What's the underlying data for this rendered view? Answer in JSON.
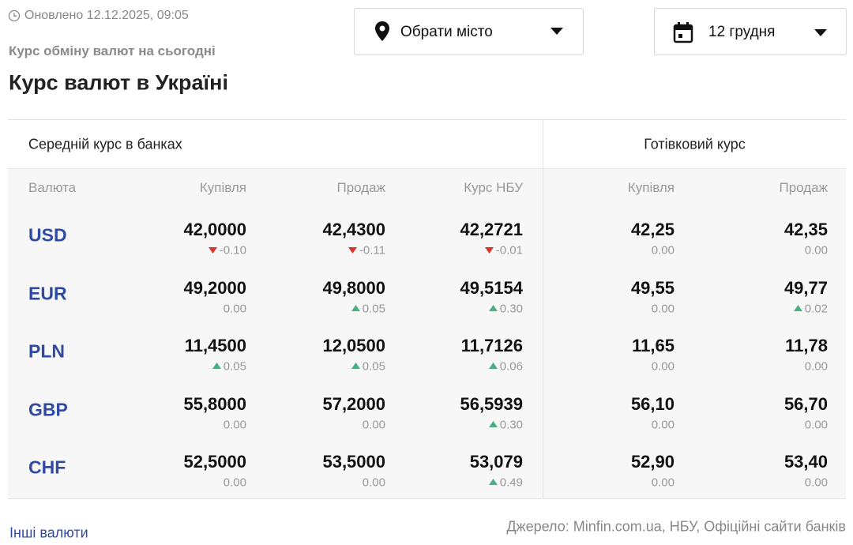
{
  "header": {
    "updated": "Оновлено 12.12.2025, 09:05",
    "subtitle": "Курс обміну валют на сьогодні",
    "title": "Курс валют в Україні"
  },
  "controls": {
    "city": "Обрати місто",
    "date": "12 грудня"
  },
  "table": {
    "groups": [
      "Середній курс в банках",
      "Готівковий курс"
    ],
    "columns": [
      "Валюта",
      "Купівля",
      "Продаж",
      "Курс НБУ",
      "Купівля",
      "Продаж"
    ],
    "rows": [
      {
        "currency": "USD",
        "cells": [
          {
            "rate": "42,0000",
            "change": "-0.10"
          },
          {
            "rate": "42,4300",
            "change": "-0.11"
          },
          {
            "rate": "42,2721",
            "change": "-0.01"
          },
          {
            "rate": "42,25",
            "change": "0.00"
          },
          {
            "rate": "42,35",
            "change": "0.00"
          }
        ]
      },
      {
        "currency": "EUR",
        "cells": [
          {
            "rate": "49,2000",
            "change": "0.00"
          },
          {
            "rate": "49,8000",
            "change": "0.05"
          },
          {
            "rate": "49,5154",
            "change": "0.30"
          },
          {
            "rate": "49,55",
            "change": "0.00"
          },
          {
            "rate": "49,77",
            "change": "0.02"
          }
        ]
      },
      {
        "currency": "PLN",
        "cells": [
          {
            "rate": "11,4500",
            "change": "0.05"
          },
          {
            "rate": "12,0500",
            "change": "0.05"
          },
          {
            "rate": "11,7126",
            "change": "0.06"
          },
          {
            "rate": "11,65",
            "change": "0.00"
          },
          {
            "rate": "11,78",
            "change": "0.00"
          }
        ]
      },
      {
        "currency": "GBP",
        "cells": [
          {
            "rate": "55,8000",
            "change": "0.00"
          },
          {
            "rate": "57,2000",
            "change": "0.00"
          },
          {
            "rate": "56,5939",
            "change": "0.30"
          },
          {
            "rate": "56,10",
            "change": "0.00"
          },
          {
            "rate": "56,70",
            "change": "0.00"
          }
        ]
      },
      {
        "currency": "CHF",
        "cells": [
          {
            "rate": "52,5000",
            "change": "0.00"
          },
          {
            "rate": "53,5000",
            "change": "0.00"
          },
          {
            "rate": "53,079",
            "change": "0.49"
          },
          {
            "rate": "52,90",
            "change": "0.00"
          },
          {
            "rate": "53,40",
            "change": "0.00"
          }
        ]
      }
    ]
  },
  "footer": {
    "link": "Інші валюти",
    "source": "Джерело: Minfin.com.ua, НБУ, Офіційні сайти банків"
  }
}
